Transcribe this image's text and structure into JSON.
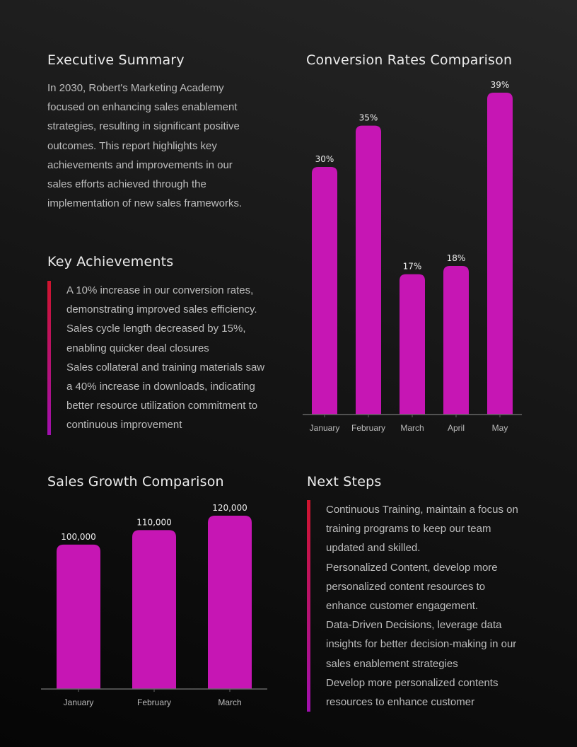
{
  "executive_summary": {
    "title": "Executive Summary",
    "lines": [
      "In 2030, Robert's Marketing Academy",
      "focused on enhancing sales enablement",
      "strategies, resulting in significant positive",
      "outcomes. This report highlights key",
      "achievements and improvements in our",
      "sales efforts achieved through the",
      "implementation of new sales frameworks."
    ]
  },
  "key_achievements": {
    "title": "Key Achievements",
    "lines": [
      "A 10% increase in our conversion rates,",
      "demonstrating improved sales efficiency.",
      "Sales cycle length decreased by 15%,",
      "enabling quicker deal closures",
      "Sales collateral and training materials saw",
      "a 40% increase in downloads, indicating",
      "better resource utilization commitment to",
      "continuous improvement"
    ]
  },
  "next_steps": {
    "title": "Next Steps",
    "lines": [
      "Continuous Training, maintain a focus on",
      "training programs to keep our team",
      "updated and skilled.",
      "Personalized Content, develop more",
      "personalized content resources to",
      "enhance customer engagement.",
      "Data-Driven Decisions, leverage data",
      "insights for better decision-making in our",
      "sales enablement strategies",
      "Develop more personalized contents",
      "resources to enhance customer"
    ]
  },
  "colors": {
    "bar": "#c616b4",
    "accent_top": "#d0142c",
    "accent_bottom": "#a010b0"
  },
  "chart_data": [
    {
      "type": "bar",
      "title": "Conversion Rates Comparison",
      "categories": [
        "January",
        "February",
        "March",
        "April",
        "May"
      ],
      "values": [
        30,
        35,
        17,
        18,
        39
      ],
      "data_labels": [
        "30%",
        "35%",
        "17%",
        "18%",
        "39%"
      ],
      "ylim": [
        0,
        39
      ],
      "grid": false
    },
    {
      "type": "bar",
      "title": "Sales Growth Comparison",
      "categories": [
        "January",
        "February",
        "March"
      ],
      "values": [
        100000,
        110000,
        120000
      ],
      "data_labels": [
        "100,000",
        "110,000",
        "120,000"
      ],
      "ylim": [
        0,
        120000
      ],
      "grid": false
    }
  ]
}
